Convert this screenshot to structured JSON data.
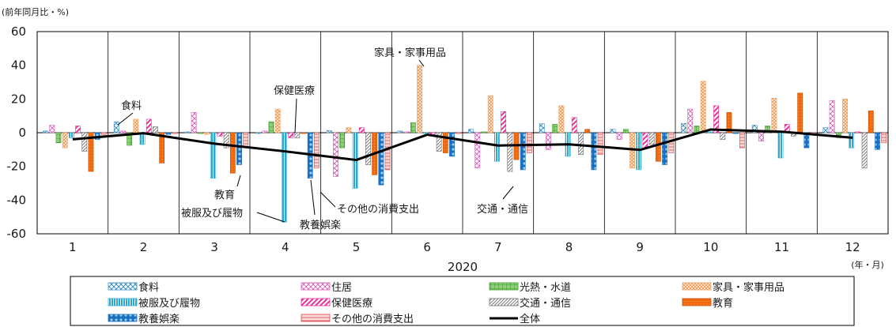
{
  "chart_data": {
    "type": "bar",
    "ylabel": "(前年同月比・%)",
    "xunit": "(年・月)",
    "year": "2020",
    "ylim": [
      -60,
      60
    ],
    "yticks": [
      60,
      40,
      20,
      0,
      -20,
      -40,
      -60
    ],
    "categories": [
      "1",
      "2",
      "3",
      "4",
      "5",
      "6",
      "7",
      "8",
      "9",
      "10",
      "11",
      "12"
    ],
    "series": [
      {
        "name": "食料",
        "values": [
          1.0,
          6.5,
          0.5,
          -0.5,
          1.3,
          1.0,
          2.0,
          5.3,
          2.0,
          5.5,
          4.5,
          3.0
        ]
      },
      {
        "name": "住居",
        "values": [
          4.5,
          1.0,
          12.0,
          1.0,
          -26.0,
          0.5,
          -21.0,
          -10.0,
          -4.0,
          14.0,
          -5.0,
          19.0
        ]
      },
      {
        "name": "光熱・水道",
        "values": [
          -6.0,
          -7.5,
          -0.5,
          6.5,
          -9.0,
          6.0,
          0.5,
          5.0,
          2.0,
          4.0,
          4.0,
          -3.0
        ]
      },
      {
        "name": "家具・家事用品",
        "values": [
          -9.0,
          8.0,
          -1.0,
          14.0,
          3.0,
          40.0,
          22.0,
          16.0,
          -21.0,
          30.5,
          20.5,
          20.0
        ]
      },
      {
        "name": "被服及び履物",
        "values": [
          -3.0,
          -7.0,
          -27.0,
          -53.0,
          -33.0,
          -0.5,
          -17.0,
          -14.0,
          -22.0,
          0.5,
          -15.0,
          -9.0
        ]
      },
      {
        "name": "保健医療",
        "values": [
          4.0,
          8.0,
          -2.0,
          -3.0,
          3.0,
          -1.0,
          12.5,
          9.0,
          -9.0,
          16.0,
          5.0,
          0.5
        ]
      },
      {
        "name": "交通・通信",
        "values": [
          -11.0,
          3.5,
          -9.0,
          -3.0,
          -19.0,
          -11.0,
          -23.0,
          -13.0,
          -7.0,
          -4.0,
          -2.0,
          -21.0
        ]
      },
      {
        "name": "教育",
        "values": [
          -23.0,
          -18.0,
          -24.0,
          -0.5,
          -25.0,
          -12.0,
          -16.0,
          2.0,
          -17.0,
          12.0,
          23.5,
          13.0
        ]
      },
      {
        "name": "教養娯楽",
        "values": [
          -4.0,
          -1.0,
          -19.0,
          -27.0,
          -31.0,
          -14.0,
          -22.0,
          -22.0,
          -19.0,
          -0.5,
          -9.0,
          -10.0
        ]
      },
      {
        "name": "その他の消費支出",
        "values": [
          -1.0,
          -0.5,
          -9.0,
          -21.0,
          -22.0,
          -0.5,
          -12.0,
          -13.0,
          -12.0,
          -9.0,
          -0.5,
          -6.0
        ]
      }
    ],
    "line": {
      "name": "全体",
      "values": [
        -3.9,
        -0.3,
        -6.5,
        -11.1,
        -16.2,
        -1.2,
        -7.6,
        -6.9,
        -10.2,
        1.9,
        0.6,
        -3.0
      ]
    },
    "annotations": [
      "食料",
      "保健医療",
      "家具・家事用品",
      "教育",
      "被服及び履物",
      "教養娯楽",
      "その他の消費支出",
      "交通・通信"
    ]
  }
}
